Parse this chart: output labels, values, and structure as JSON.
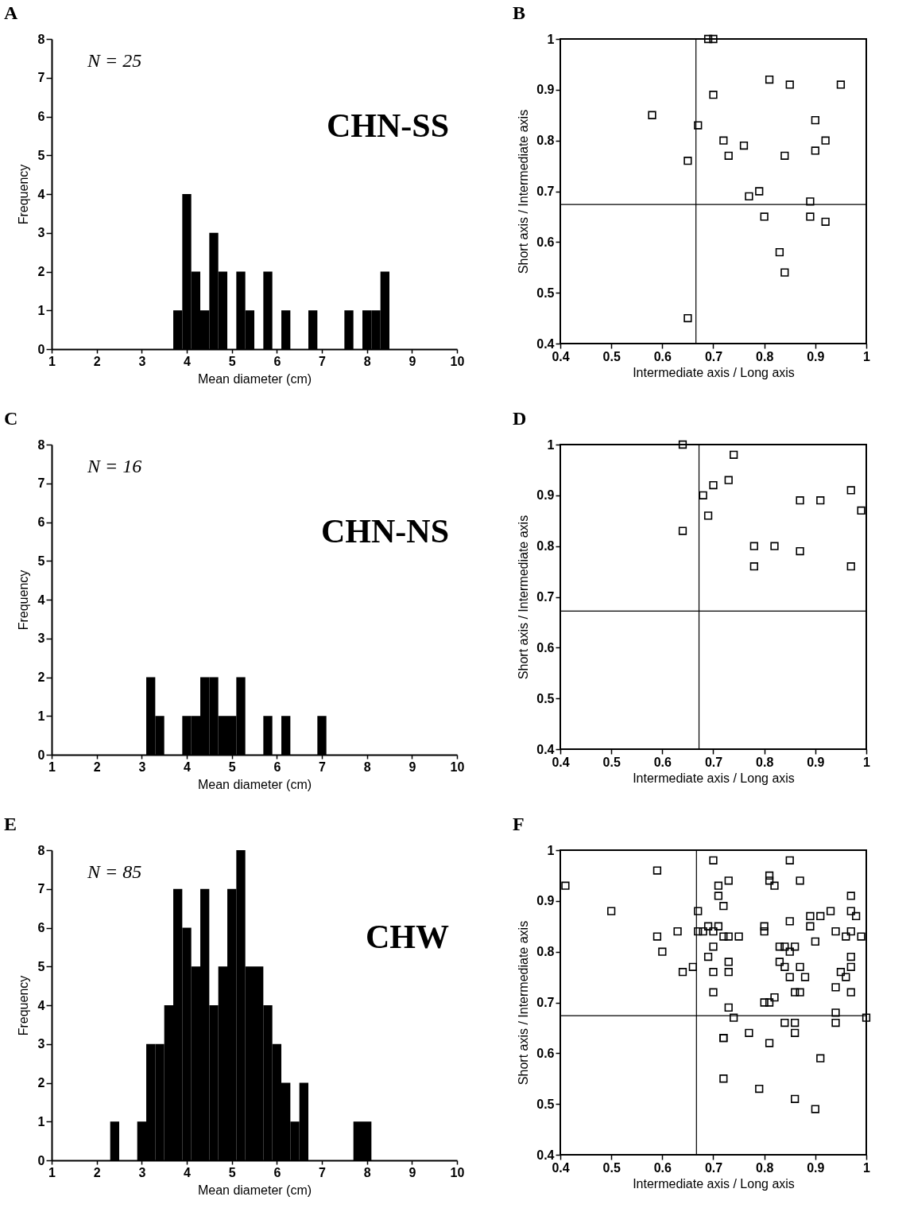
{
  "chart_data": [
    {
      "type": "histogram",
      "title": "A",
      "xlabel": "Mean diameter (cm)",
      "ylabel": "Frequency",
      "color": "#000000",
      "bins": [
        3.7,
        3.9,
        4.1,
        4.3,
        4.5,
        4.7,
        4.9,
        5.1,
        5.3,
        5.5,
        5.7,
        5.9,
        6.1,
        6.3,
        6.5,
        6.7,
        6.9,
        7.1,
        7.3,
        7.5,
        7.7,
        7.9,
        8.1,
        8.3,
        8.5
      ],
      "values": [
        1,
        4,
        2,
        1,
        3,
        2,
        0,
        2,
        1,
        0,
        2,
        0,
        1,
        0,
        0,
        1,
        0,
        0,
        0,
        1,
        0,
        1,
        1,
        2
      ],
      "xlim": [
        1,
        10
      ],
      "xticks": [
        1,
        2,
        3,
        4,
        5,
        6,
        7,
        8,
        9,
        10
      ],
      "ylim": [
        0,
        8
      ],
      "yticks": [
        0,
        1,
        2,
        3,
        4,
        5,
        6,
        7,
        8
      ],
      "annotations": [
        "N = 25",
        "CHN-SS"
      ]
    },
    {
      "type": "scatter",
      "title": "B",
      "xlabel": "Intermediate axis / Long axis",
      "ylabel": "Short axis / Intermediate axis",
      "color": "#000000",
      "marker": "square",
      "x": [
        0.58,
        0.65,
        0.67,
        0.65,
        0.69,
        0.7,
        0.7,
        0.72,
        0.73,
        0.76,
        0.77,
        0.79,
        0.8,
        0.81,
        0.85,
        0.84,
        0.83,
        0.84,
        0.89,
        0.89,
        0.92,
        0.9,
        0.9,
        0.92,
        0.95
      ],
      "values": [
        0.85,
        0.76,
        0.83,
        0.45,
        1.0,
        1.0,
        0.89,
        0.8,
        0.77,
        0.79,
        0.69,
        0.7,
        0.65,
        0.92,
        0.91,
        0.77,
        0.58,
        0.54,
        0.68,
        0.65,
        0.64,
        0.84,
        0.78,
        0.8,
        0.91
      ],
      "xlim": [
        0.4,
        1
      ],
      "xticks": [
        0.4,
        0.5,
        0.6,
        0.7,
        0.8,
        0.9,
        1
      ],
      "ylim": [
        0.4,
        1
      ],
      "yticks": [
        0.4,
        0.5,
        0.6,
        0.7,
        0.8,
        0.9,
        1
      ],
      "ref_lines": [
        {
          "axis": "x",
          "value": 0.666
        },
        {
          "axis": "y",
          "value": 0.674
        }
      ]
    },
    {
      "type": "histogram",
      "title": "C",
      "xlabel": "Mean diameter (cm)",
      "ylabel": "Frequency",
      "color": "#000000",
      "bins": [
        3.1,
        3.3,
        3.5,
        3.7,
        3.9,
        4.1,
        4.3,
        4.5,
        4.7,
        4.9,
        5.1,
        5.3,
        5.5,
        5.7,
        5.9,
        6.1,
        6.3,
        6.5,
        6.7,
        6.9,
        7.1
      ],
      "values": [
        2,
        1,
        0,
        0,
        1,
        1,
        2,
        2,
        1,
        1,
        2,
        0,
        0,
        1,
        0,
        1,
        0,
        0,
        0,
        1
      ],
      "xlim": [
        1,
        10
      ],
      "xticks": [
        1,
        2,
        3,
        4,
        5,
        6,
        7,
        8,
        9,
        10
      ],
      "ylim": [
        0,
        8
      ],
      "yticks": [
        0,
        1,
        2,
        3,
        4,
        5,
        6,
        7,
        8
      ],
      "annotations": [
        "N = 16",
        "CHN-NS"
      ]
    },
    {
      "type": "scatter",
      "title": "D",
      "xlabel": "Intermediate axis / Long axis",
      "ylabel": "Short axis / Intermediate axis",
      "color": "#000000",
      "marker": "square",
      "x": [
        0.64,
        0.64,
        0.68,
        0.7,
        0.69,
        0.73,
        0.74,
        0.78,
        0.78,
        0.82,
        0.87,
        0.87,
        0.91,
        0.97,
        0.97,
        0.99
      ],
      "values": [
        1.0,
        0.83,
        0.9,
        0.92,
        0.86,
        0.93,
        0.98,
        0.8,
        0.76,
        0.8,
        0.79,
        0.89,
        0.89,
        0.91,
        0.76,
        0.87
      ],
      "xlim": [
        0.4,
        1
      ],
      "xticks": [
        0.4,
        0.5,
        0.6,
        0.7,
        0.8,
        0.9,
        1
      ],
      "ylim": [
        0.4,
        1
      ],
      "yticks": [
        0.4,
        0.5,
        0.6,
        0.7,
        0.8,
        0.9,
        1
      ],
      "ref_lines": [
        {
          "axis": "x",
          "value": 0.672
        },
        {
          "axis": "y",
          "value": 0.672
        }
      ]
    },
    {
      "type": "histogram",
      "title": "E",
      "xlabel": "Mean diameter (cm)",
      "ylabel": "Frequency",
      "color": "#000000",
      "bins": [
        2.3,
        2.5,
        2.7,
        2.9,
        3.1,
        3.3,
        3.5,
        3.7,
        3.9,
        4.1,
        4.3,
        4.5,
        4.7,
        4.9,
        5.1,
        5.3,
        5.5,
        5.7,
        5.9,
        6.1,
        6.3,
        6.5,
        6.7,
        6.9,
        7.1,
        7.3,
        7.5,
        7.7,
        7.9,
        8.1
      ],
      "values": [
        1,
        0,
        0,
        1,
        3,
        3,
        4,
        7,
        6,
        5,
        7,
        4,
        5,
        7,
        8,
        5,
        5,
        4,
        3,
        2,
        1,
        2,
        0,
        0,
        0,
        0,
        0,
        1,
        1
      ],
      "xlim": [
        1,
        10
      ],
      "xticks": [
        1,
        2,
        3,
        4,
        5,
        6,
        7,
        8,
        9,
        10
      ],
      "ylim": [
        0,
        8
      ],
      "yticks": [
        0,
        1,
        2,
        3,
        4,
        5,
        6,
        7,
        8
      ],
      "annotations": [
        "N = 85",
        "CHW"
      ]
    },
    {
      "type": "scatter",
      "title": "F",
      "xlabel": "Intermediate axis / Long axis",
      "ylabel": "Short axis / Intermediate axis",
      "color": "#000000",
      "marker": "square",
      "x": [
        0.41,
        0.5,
        0.59,
        0.59,
        0.6,
        0.63,
        0.64,
        0.66,
        0.67,
        0.68,
        0.69,
        0.7,
        0.7,
        0.69,
        0.7,
        0.7,
        0.7,
        0.71,
        0.71,
        0.72,
        0.71,
        0.72,
        0.73,
        0.73,
        0.75,
        0.73,
        0.73,
        0.73,
        0.74,
        0.72,
        0.72,
        0.72,
        0.77,
        0.79,
        0.8,
        0.8,
        0.8,
        0.81,
        0.82,
        0.81,
        0.81,
        0.82,
        0.81,
        0.83,
        0.85,
        0.85,
        0.87,
        0.84,
        0.85,
        0.86,
        0.83,
        0.84,
        0.85,
        0.87,
        0.88,
        0.86,
        0.87,
        0.84,
        0.86,
        0.86,
        0.86,
        0.89,
        0.91,
        0.93,
        0.89,
        0.9,
        0.91,
        0.9,
        0.94,
        0.94,
        0.94,
        0.94,
        0.97,
        0.97,
        0.98,
        0.96,
        0.97,
        0.99,
        0.97,
        0.95,
        0.97,
        0.96,
        0.97,
        1.0,
        0.67
      ],
      "values": [
        0.93,
        0.88,
        0.96,
        0.83,
        0.8,
        0.84,
        0.76,
        0.77,
        0.88,
        0.84,
        0.85,
        0.98,
        0.84,
        0.79,
        0.81,
        0.76,
        0.72,
        0.93,
        0.91,
        0.89,
        0.85,
        0.83,
        0.83,
        0.94,
        0.83,
        0.78,
        0.76,
        0.69,
        0.67,
        0.63,
        0.63,
        0.55,
        0.64,
        0.53,
        0.85,
        0.84,
        0.7,
        0.7,
        0.71,
        0.95,
        0.94,
        0.93,
        0.62,
        0.81,
        0.98,
        0.86,
        0.94,
        0.81,
        0.8,
        0.81,
        0.78,
        0.77,
        0.75,
        0.77,
        0.75,
        0.72,
        0.72,
        0.66,
        0.66,
        0.64,
        0.51,
        0.87,
        0.87,
        0.88,
        0.85,
        0.82,
        0.59,
        0.49,
        0.73,
        0.68,
        0.66,
        0.84,
        0.91,
        0.88,
        0.87,
        0.83,
        0.84,
        0.83,
        0.79,
        0.76,
        0.77,
        0.75,
        0.72,
        0.67,
        0.84
      ],
      "xlim": [
        0.4,
        1
      ],
      "xticks": [
        0.4,
        0.5,
        0.6,
        0.7,
        0.8,
        0.9,
        1
      ],
      "ylim": [
        0.4,
        1
      ],
      "yticks": [
        0.4,
        0.5,
        0.6,
        0.7,
        0.8,
        0.9,
        1
      ],
      "ref_lines": [
        {
          "axis": "x",
          "value": 0.667
        },
        {
          "axis": "y",
          "value": 0.674
        }
      ]
    }
  ]
}
